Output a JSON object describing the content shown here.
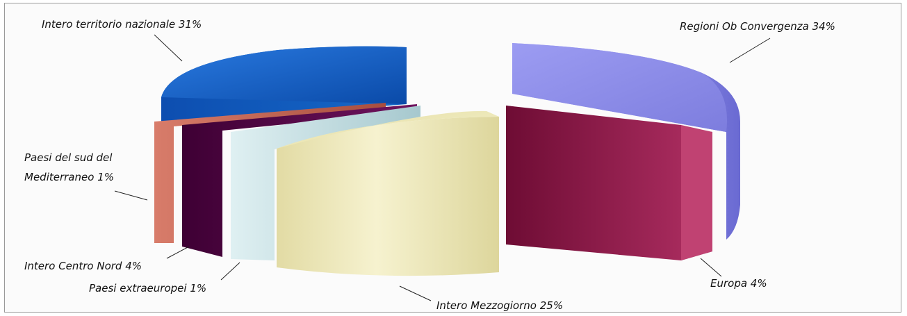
{
  "chart_data": {
    "type": "pie",
    "style": "3d-exploded",
    "slices": [
      {
        "label": "Intero territorio nazionale",
        "value": 31,
        "color": "#1c64c4"
      },
      {
        "label": "Regioni Ob Convergenza",
        "value": 34,
        "color": "#8f8fe8"
      },
      {
        "label": "Europa",
        "value": 4,
        "color": "#922050"
      },
      {
        "label": "Intero Mezzogiorno",
        "value": 25,
        "color": "#ece7b4"
      },
      {
        "label": "Paesi extraeuropei",
        "value": 1,
        "color": "#c8e0e4"
      },
      {
        "label": "Intero Centro Nord",
        "value": 4,
        "color": "#5a0a52"
      },
      {
        "label": "Paesi del sud del Mediterraneo",
        "value": 1,
        "color": "#c46a58"
      }
    ],
    "labels": [
      {
        "text": "Intero territorio nazionale 31%"
      },
      {
        "text": "Regioni Ob Convergenza 34%"
      },
      {
        "text": "Paesi del sud del"
      },
      {
        "text": "Mediterraneo 1%"
      },
      {
        "text": "Intero Centro Nord 4%"
      },
      {
        "text": "Paesi extraeuropei 1%"
      },
      {
        "text": "Intero Mezzogiorno 25%"
      },
      {
        "text": "Europa 4%"
      }
    ]
  }
}
